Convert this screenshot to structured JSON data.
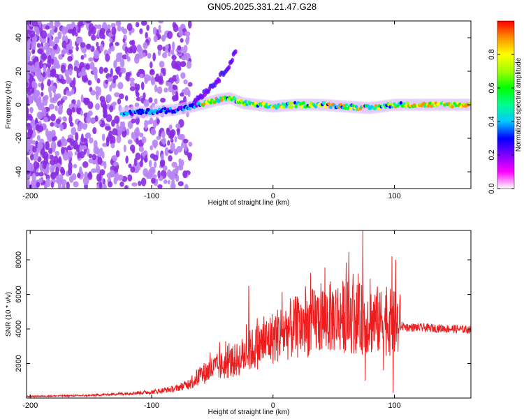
{
  "title": "GN05.2025.331.21.47.G28",
  "chart_data": [
    {
      "type": "heatmap",
      "title": "GN05.2025.331.21.47.G28",
      "xlabel": "Height of straight line (km)",
      "ylabel": "Frequency (Hz)",
      "xlim": [
        -203,
        163
      ],
      "ylim": [
        -50,
        50
      ],
      "xticks": [
        -200,
        -100,
        0,
        100
      ],
      "yticks": [
        -40,
        -20,
        0,
        20,
        40
      ],
      "colorbar": {
        "label": "Normalized spectral amplitude",
        "range": [
          0,
          1
        ],
        "ticks": [
          "0.0",
          "0.2",
          "0.4",
          "0.6",
          "0.8"
        ],
        "tick_values": [
          0,
          0.2,
          0.4,
          0.6,
          0.8
        ],
        "colors": [
          "#ffffff",
          "#ff00ff",
          "#7f00ff",
          "#0000ff",
          "#00c8ff",
          "#00ff90",
          "#00ff00",
          "#a0ff00",
          "#ffff00",
          "#ff9000",
          "#ff0000"
        ]
      },
      "ridge": {
        "height_km": [
          -120,
          -100,
          -80,
          -60,
          -45,
          -35,
          -25,
          -15,
          0,
          20,
          40,
          60,
          80,
          100,
          130,
          163
        ],
        "frequency_hz": [
          -5,
          -4,
          -3,
          0,
          3,
          4,
          1,
          0,
          -1,
          0,
          0,
          -1,
          -2,
          0,
          0,
          0
        ]
      },
      "branch": {
        "height_km": [
          -65,
          -55,
          -45,
          -35,
          -30
        ],
        "frequency_hz": [
          2,
          8,
          15,
          25,
          33
        ]
      }
    },
    {
      "type": "line",
      "xlabel": "Height of straight line (km)",
      "ylabel": "SNR (10 * v/v)",
      "xlim": [
        -203,
        163
      ],
      "ylim": [
        0,
        9700
      ],
      "xticks": [
        -200,
        -100,
        0,
        100
      ],
      "yticks": [
        2000,
        4000,
        6000,
        8000
      ],
      "series_color": "#ee1c1c",
      "envelope": {
        "x": [
          -203,
          -150,
          -100,
          -80,
          -70,
          -60,
          -50,
          -40,
          -30,
          -20,
          -10,
          0,
          10,
          20,
          30,
          40,
          50,
          60,
          70,
          80,
          90,
          100,
          110,
          130,
          150,
          163
        ],
        "y": [
          100,
          150,
          350,
          550,
          800,
          1300,
          1700,
          1900,
          2200,
          2700,
          3100,
          3500,
          3900,
          4100,
          4300,
          4600,
          4700,
          4750,
          4600,
          4500,
          4500,
          4300,
          4100,
          4050,
          4000,
          3950
        ]
      },
      "spikes": [
        {
          "x": -20,
          "y": 6500
        },
        {
          "x": 66,
          "y": 7200
        },
        {
          "x": 74,
          "y": 9700
        },
        {
          "x": 76,
          "y": 1000
        },
        {
          "x": 80,
          "y": 6900
        },
        {
          "x": 88,
          "y": 6100
        },
        {
          "x": 91,
          "y": 1600
        },
        {
          "x": 98,
          "y": 8200
        },
        {
          "x": 99,
          "y": 300
        },
        {
          "x": 101,
          "y": 8000
        }
      ]
    }
  ]
}
